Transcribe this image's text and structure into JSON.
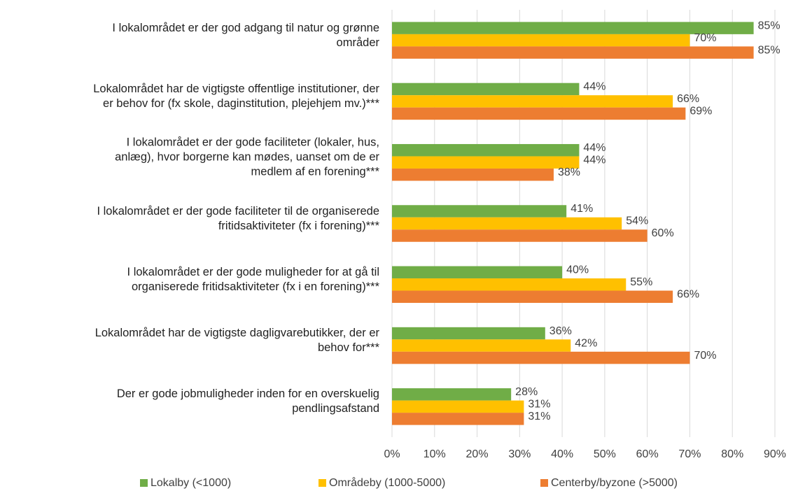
{
  "chart_data": {
    "type": "bar",
    "orientation": "horizontal",
    "categories": [
      "I lokalområdet er der god adgang til natur og grønne\nområder",
      "Lokalområdet har de vigtigste offentlige institutioner, der\ner behov for (fx skole, daginstitution, plejehjem mv.)***",
      "I lokalområdet er der gode faciliteter (lokaler, hus,\nanlæg), hvor borgerne kan mødes, uanset om de er\nmedlem af en forening***",
      "I lokalområdet er der gode faciliteter til de organiserede\nfritidsaktiviteter (fx i forening)***",
      "I lokalområdet er der gode muligheder for at gå til\norganiserede fritidsaktiviteter (fx i en forening)***",
      "Lokalområdet har de vigtigste dagligvarebutikker, der er\nbehov for***",
      "Der er gode jobmuligheder inden for en overskuelig\npendlingsafstand"
    ],
    "series": [
      {
        "name": "Lokalby (<1000)",
        "color": "#70ad47",
        "values": [
          85,
          44,
          44,
          41,
          40,
          36,
          28
        ],
        "value_labels": [
          "85%",
          "44%",
          "44%",
          "41%",
          "40%",
          "36%",
          "28%"
        ]
      },
      {
        "name": "Områdeby (1000-5000)",
        "color": "#ffc000",
        "values": [
          70,
          66,
          44,
          54,
          55,
          42,
          31
        ],
        "value_labels": [
          "70%",
          "66%",
          "44%",
          "54%",
          "55%",
          "42%",
          "31%"
        ]
      },
      {
        "name": "Centerby/byzone (>5000)",
        "color": "#ed7d31",
        "values": [
          85,
          69,
          38,
          60,
          66,
          70,
          31
        ],
        "value_labels": [
          "85%",
          "69%",
          "38%",
          "60%",
          "66%",
          "70%",
          "31%"
        ]
      }
    ],
    "xlim": [
      0,
      90
    ],
    "xticks": [
      {
        "value": 0,
        "label": "0%"
      },
      {
        "value": 10,
        "label": "10%"
      },
      {
        "value": 20,
        "label": "20%"
      },
      {
        "value": 30,
        "label": "30%"
      },
      {
        "value": 40,
        "label": "40%"
      },
      {
        "value": 50,
        "label": "50%"
      },
      {
        "value": 60,
        "label": "60%"
      },
      {
        "value": 70,
        "label": "70%"
      },
      {
        "value": 80,
        "label": "80%"
      },
      {
        "value": 90,
        "label": "90%"
      }
    ],
    "grid": true,
    "legend": "bottom"
  }
}
